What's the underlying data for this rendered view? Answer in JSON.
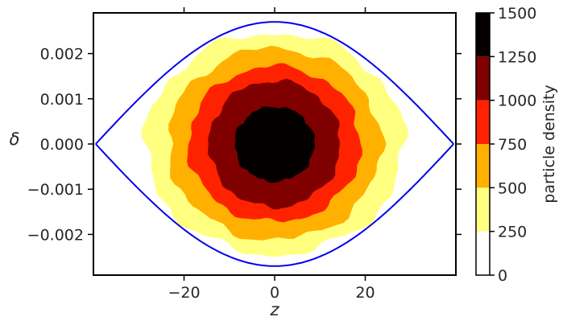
{
  "chart_data": {
    "type": "contourf",
    "xlabel": "z",
    "ylabel": "δ",
    "xlim": [
      -40,
      40
    ],
    "ylim": [
      -0.0029,
      0.0029
    ],
    "xticks": [
      -20,
      0,
      20
    ],
    "xtick_labels": [
      "−20",
      "0",
      "20"
    ],
    "yticks": [
      -0.002,
      -0.001,
      0.0,
      0.001,
      0.002
    ],
    "ytick_labels": [
      "−0.002",
      "−0.001",
      "0.000",
      "0.001",
      "0.002"
    ],
    "grid": false,
    "colorbar": {
      "label": "particle density",
      "levels": [
        0,
        250,
        500,
        750,
        1000,
        1250,
        1500
      ],
      "tick_labels": [
        "0",
        "250",
        "500",
        "750",
        "1000",
        "1250",
        "1500"
      ],
      "colors": [
        "#ffffff",
        "#ffff80",
        "#ffb000",
        "#ff2200",
        "#800000",
        "#050000"
      ]
    },
    "contours": [
      {
        "level": 250,
        "color": "#ffff80",
        "half_width_z": 28.5,
        "half_height_delta": 0.00245
      },
      {
        "level": 500,
        "color": "#ffb000",
        "half_width_z": 23.5,
        "half_height_delta": 0.00212
      },
      {
        "level": 750,
        "color": "#ff2200",
        "half_width_z": 19.0,
        "half_height_delta": 0.00172
      },
      {
        "level": 1000,
        "color": "#800000",
        "half_width_z": 14.5,
        "half_height_delta": 0.0014
      },
      {
        "level": 1250,
        "color": "#050000",
        "half_width_z": 8.8,
        "half_height_delta": 0.00083
      }
    ],
    "separatrix": {
      "color": "#0000ee",
      "z_half_range": 39.5,
      "delta_max": 0.0027
    }
  }
}
